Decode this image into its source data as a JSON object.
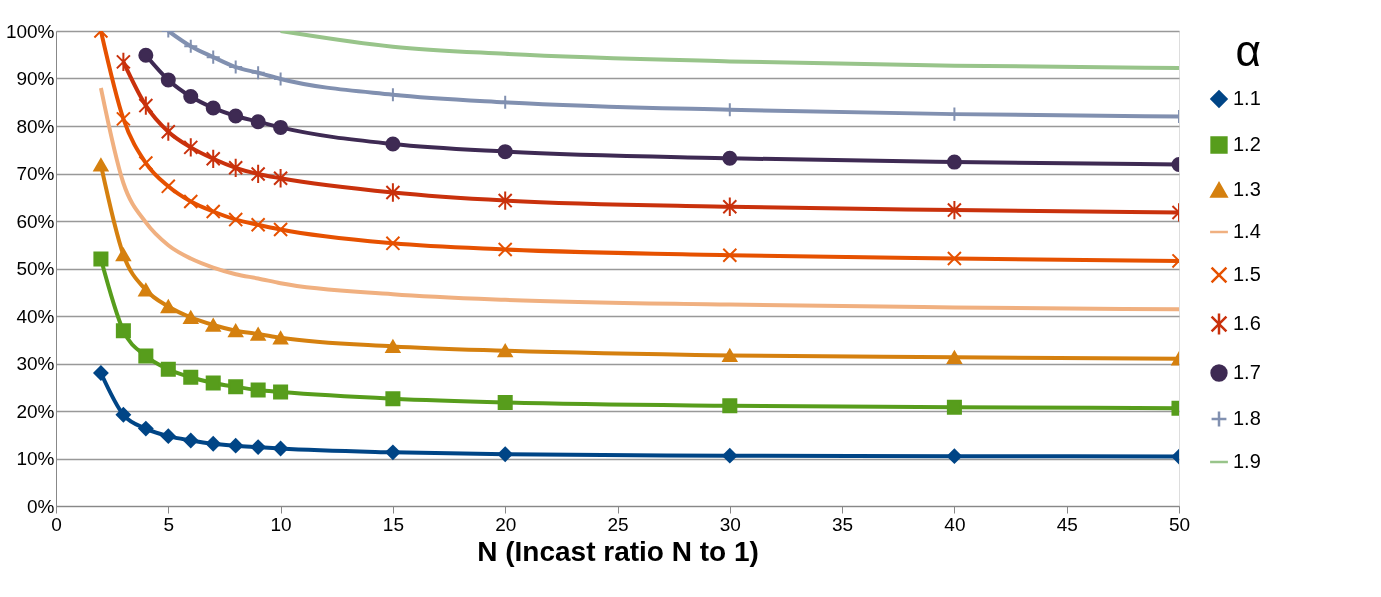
{
  "chart_data": {
    "type": "line",
    "xlabel": "N (Incast ratio N to 1)",
    "legend_title": "α",
    "legend": "right",
    "grid": "y",
    "line_style": "solid",
    "x": [
      2,
      3,
      4,
      5,
      6,
      7,
      8,
      9,
      10,
      15,
      20,
      30,
      40,
      50
    ],
    "xlim": [
      0,
      50
    ],
    "xticks": [
      0,
      5,
      10,
      15,
      20,
      25,
      30,
      35,
      40,
      45,
      50
    ],
    "ylim": [
      0,
      100
    ],
    "yticks": [
      {
        "value": 0,
        "label": "0%"
      },
      {
        "value": 10,
        "label": "10%"
      },
      {
        "value": 20,
        "label": "20%"
      },
      {
        "value": 30,
        "label": "30%"
      },
      {
        "value": 40,
        "label": "40%"
      },
      {
        "value": 50,
        "label": "50%"
      },
      {
        "value": 60,
        "label": "60%"
      },
      {
        "value": 70,
        "label": "70%"
      },
      {
        "value": 80,
        "label": "80%"
      },
      {
        "value": 90,
        "label": "90%"
      },
      {
        "value": 100,
        "label": "100%"
      }
    ],
    "series": [
      {
        "name": "1.1",
        "color": "#004586",
        "marker": "diamond",
        "values": [
          28.0,
          19.2,
          16.3,
          14.7,
          13.8,
          13.1,
          12.7,
          12.4,
          12.1,
          11.3,
          10.9,
          10.6,
          10.5,
          10.4
        ]
      },
      {
        "name": "1.2",
        "color": "#579d1c",
        "marker": "square",
        "values": [
          52.0,
          36.9,
          31.6,
          28.8,
          27.1,
          25.9,
          25.1,
          24.4,
          24.0,
          22.6,
          21.8,
          21.1,
          20.8,
          20.6
        ]
      },
      {
        "name": "1.3",
        "color": "#d5800f",
        "marker": "triangle",
        "values": [
          71.8,
          52.9,
          45.5,
          42.0,
          39.7,
          38.1,
          36.9,
          36.2,
          35.4,
          33.6,
          32.7,
          31.7,
          31.3,
          31.0
        ]
      },
      {
        "name": "1.4",
        "color": "#f0b080",
        "marker": "none",
        "values": [
          88.0,
          68.0,
          59.7,
          54.9,
          52.1,
          50.2,
          48.8,
          47.9,
          46.9,
          44.6,
          43.4,
          42.4,
          41.8,
          41.4
        ]
      },
      {
        "name": "1.5",
        "color": "#e65100",
        "marker": "x",
        "values": [
          100,
          81.5,
          72.2,
          67.3,
          64.1,
          62.0,
          60.3,
          59.2,
          58.2,
          55.3,
          54.0,
          52.8,
          52.1,
          51.6
        ]
      },
      {
        "name": "1.6",
        "color": "#c9310c",
        "marker": "cross",
        "values": [
          null,
          93.5,
          84.3,
          78.8,
          75.5,
          73.1,
          71.2,
          69.9,
          69.0,
          66.0,
          64.3,
          63.0,
          62.3,
          61.8
        ]
      },
      {
        "name": "1.7",
        "color": "#3e2a53",
        "marker": "circle",
        "values": [
          null,
          null,
          94.9,
          89.7,
          86.2,
          83.8,
          82.1,
          80.9,
          79.7,
          76.2,
          74.6,
          73.2,
          72.4,
          71.9
        ]
      },
      {
        "name": "1.8",
        "color": "#8190b0",
        "marker": "plus",
        "values": [
          null,
          null,
          null,
          100,
          96.8,
          94.5,
          92.4,
          91.2,
          89.9,
          86.6,
          85.0,
          83.4,
          82.5,
          82.0
        ]
      },
      {
        "name": "1.9",
        "color": "#98c48a",
        "marker": "none",
        "values": [
          null,
          null,
          null,
          null,
          null,
          null,
          null,
          null,
          100,
          96.7,
          95.2,
          93.6,
          92.7,
          92.2
        ]
      }
    ]
  }
}
